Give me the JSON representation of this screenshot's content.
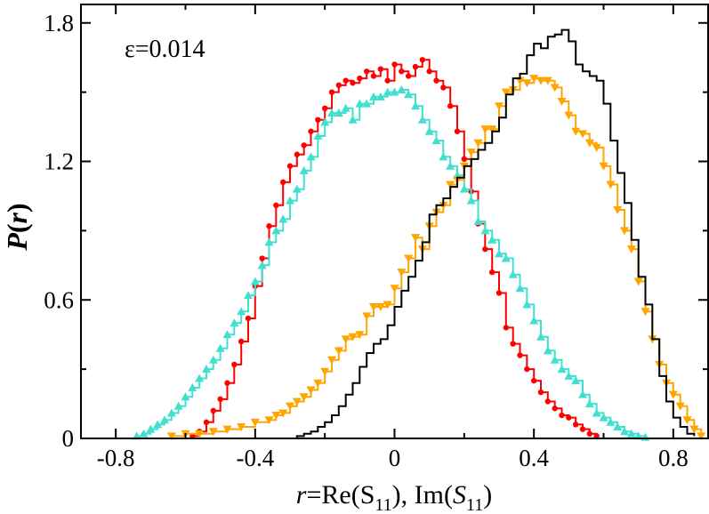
{
  "chart_data": {
    "type": "histogram-step",
    "xlim": [
      -0.9,
      0.9
    ],
    "ylim": [
      0,
      1.88
    ],
    "xticks": [
      -0.8,
      -0.4,
      0,
      0.4,
      0.8
    ],
    "xtick_labels": [
      "-0.8",
      "-0.4",
      "0",
      "0.4",
      "0.8"
    ],
    "yticks": [
      0,
      0.6,
      1.2,
      1.8
    ],
    "ytick_labels": [
      "0",
      "0.6",
      "1.2",
      "1.8"
    ],
    "ylabel": {
      "main": "P",
      "open": "(",
      "var": "r",
      "close": ")"
    },
    "xlabel": {
      "var": "r",
      "re": "=Re(S",
      "sub1": "11",
      "mid": "), Im(",
      "svar": "S",
      "sub2": "11",
      "close": ")"
    },
    "annotation": "ε=0.014",
    "series": [
      {
        "name": "red",
        "color": "#ff0000",
        "marker": "circle",
        "points": [
          [
            -0.58,
            0.01
          ],
          [
            -0.56,
            0.03
          ],
          [
            -0.54,
            0.07
          ],
          [
            -0.52,
            0.12
          ],
          [
            -0.5,
            0.17
          ],
          [
            -0.48,
            0.24
          ],
          [
            -0.46,
            0.32
          ],
          [
            -0.44,
            0.42
          ],
          [
            -0.42,
            0.52
          ],
          [
            -0.4,
            0.66
          ],
          [
            -0.38,
            0.78
          ],
          [
            -0.36,
            0.92
          ],
          [
            -0.34,
            1.01
          ],
          [
            -0.32,
            1.11
          ],
          [
            -0.3,
            1.18
          ],
          [
            -0.28,
            1.23
          ],
          [
            -0.26,
            1.27
          ],
          [
            -0.24,
            1.33
          ],
          [
            -0.22,
            1.38
          ],
          [
            -0.2,
            1.43
          ],
          [
            -0.18,
            1.5
          ],
          [
            -0.16,
            1.53
          ],
          [
            -0.14,
            1.55
          ],
          [
            -0.12,
            1.54
          ],
          [
            -0.1,
            1.56
          ],
          [
            -0.08,
            1.59
          ],
          [
            -0.06,
            1.57
          ],
          [
            -0.04,
            1.6
          ],
          [
            -0.02,
            1.55
          ],
          [
            0.0,
            1.62
          ],
          [
            0.02,
            1.59
          ],
          [
            0.04,
            1.57
          ],
          [
            0.06,
            1.61
          ],
          [
            0.08,
            1.64
          ],
          [
            0.1,
            1.59
          ],
          [
            0.12,
            1.55
          ],
          [
            0.14,
            1.52
          ],
          [
            0.16,
            1.44
          ],
          [
            0.18,
            1.33
          ],
          [
            0.2,
            1.21
          ],
          [
            0.22,
            1.07
          ],
          [
            0.24,
            0.93
          ],
          [
            0.26,
            0.82
          ],
          [
            0.28,
            0.72
          ],
          [
            0.3,
            0.63
          ],
          [
            0.32,
            0.48
          ],
          [
            0.34,
            0.41
          ],
          [
            0.36,
            0.36
          ],
          [
            0.38,
            0.3
          ],
          [
            0.4,
            0.25
          ],
          [
            0.42,
            0.2
          ],
          [
            0.44,
            0.16
          ],
          [
            0.46,
            0.13
          ],
          [
            0.48,
            0.1
          ],
          [
            0.5,
            0.09
          ],
          [
            0.52,
            0.06
          ],
          [
            0.54,
            0.04
          ],
          [
            0.56,
            0.02
          ],
          [
            0.58,
            0.01
          ]
        ]
      },
      {
        "name": "turquoise",
        "color": "#40e0d0",
        "marker": "triangle-up",
        "points": [
          [
            -0.74,
            0.01
          ],
          [
            -0.72,
            0.02
          ],
          [
            -0.7,
            0.04
          ],
          [
            -0.68,
            0.06
          ],
          [
            -0.66,
            0.08
          ],
          [
            -0.64,
            0.11
          ],
          [
            -0.62,
            0.14
          ],
          [
            -0.6,
            0.18
          ],
          [
            -0.58,
            0.22
          ],
          [
            -0.56,
            0.26
          ],
          [
            -0.54,
            0.3
          ],
          [
            -0.52,
            0.34
          ],
          [
            -0.5,
            0.39
          ],
          [
            -0.48,
            0.45
          ],
          [
            -0.46,
            0.5
          ],
          [
            -0.44,
            0.55
          ],
          [
            -0.42,
            0.62
          ],
          [
            -0.4,
            0.68
          ],
          [
            -0.38,
            0.75
          ],
          [
            -0.36,
            0.85
          ],
          [
            -0.34,
            0.9
          ],
          [
            -0.32,
            0.95
          ],
          [
            -0.3,
            1.03
          ],
          [
            -0.28,
            1.08
          ],
          [
            -0.26,
            1.16
          ],
          [
            -0.24,
            1.22
          ],
          [
            -0.22,
            1.31
          ],
          [
            -0.2,
            1.37
          ],
          [
            -0.18,
            1.41
          ],
          [
            -0.16,
            1.41
          ],
          [
            -0.14,
            1.43
          ],
          [
            -0.12,
            1.38
          ],
          [
            -0.1,
            1.45
          ],
          [
            -0.08,
            1.45
          ],
          [
            -0.06,
            1.48
          ],
          [
            -0.04,
            1.48
          ],
          [
            -0.02,
            1.5
          ],
          [
            0.0,
            1.5
          ],
          [
            0.02,
            1.51
          ],
          [
            0.04,
            1.49
          ],
          [
            0.06,
            1.44
          ],
          [
            0.08,
            1.38
          ],
          [
            0.1,
            1.33
          ],
          [
            0.12,
            1.29
          ],
          [
            0.14,
            1.22
          ],
          [
            0.16,
            1.18
          ],
          [
            0.18,
            1.14
          ],
          [
            0.2,
            1.08
          ],
          [
            0.22,
            1.03
          ],
          [
            0.24,
            0.94
          ],
          [
            0.26,
            0.9
          ],
          [
            0.28,
            0.86
          ],
          [
            0.3,
            0.8
          ],
          [
            0.32,
            0.78
          ],
          [
            0.34,
            0.71
          ],
          [
            0.36,
            0.65
          ],
          [
            0.38,
            0.58
          ],
          [
            0.4,
            0.51
          ],
          [
            0.42,
            0.44
          ],
          [
            0.44,
            0.38
          ],
          [
            0.46,
            0.34
          ],
          [
            0.48,
            0.3
          ],
          [
            0.5,
            0.27
          ],
          [
            0.52,
            0.25
          ],
          [
            0.54,
            0.19
          ],
          [
            0.56,
            0.15
          ],
          [
            0.58,
            0.11
          ],
          [
            0.6,
            0.09
          ],
          [
            0.62,
            0.07
          ],
          [
            0.64,
            0.05
          ],
          [
            0.66,
            0.03
          ],
          [
            0.68,
            0.02
          ],
          [
            0.7,
            0.01
          ],
          [
            0.72,
            0.005
          ]
        ]
      },
      {
        "name": "orange",
        "color": "#ffa500",
        "marker": "triangle-down",
        "points": [
          [
            -0.64,
            0.01
          ],
          [
            -0.6,
            0.02
          ],
          [
            -0.56,
            0.02
          ],
          [
            -0.52,
            0.03
          ],
          [
            -0.48,
            0.04
          ],
          [
            -0.44,
            0.05
          ],
          [
            -0.4,
            0.07
          ],
          [
            -0.36,
            0.08
          ],
          [
            -0.34,
            0.1
          ],
          [
            -0.32,
            0.11
          ],
          [
            -0.3,
            0.14
          ],
          [
            -0.28,
            0.16
          ],
          [
            -0.26,
            0.18
          ],
          [
            -0.24,
            0.21
          ],
          [
            -0.22,
            0.24
          ],
          [
            -0.2,
            0.29
          ],
          [
            -0.18,
            0.34
          ],
          [
            -0.16,
            0.38
          ],
          [
            -0.14,
            0.43
          ],
          [
            -0.12,
            0.44
          ],
          [
            -0.1,
            0.45
          ],
          [
            -0.08,
            0.53
          ],
          [
            -0.06,
            0.57
          ],
          [
            -0.04,
            0.57
          ],
          [
            -0.02,
            0.58
          ],
          [
            0.0,
            0.65
          ],
          [
            0.02,
            0.72
          ],
          [
            0.04,
            0.78
          ],
          [
            0.06,
            0.87
          ],
          [
            0.08,
            0.82
          ],
          [
            0.1,
            0.92
          ],
          [
            0.12,
            0.98
          ],
          [
            0.14,
            1.01
          ],
          [
            0.16,
            1.1
          ],
          [
            0.18,
            1.12
          ],
          [
            0.2,
            1.18
          ],
          [
            0.22,
            1.24
          ],
          [
            0.24,
            1.28
          ],
          [
            0.26,
            1.34
          ],
          [
            0.28,
            1.34
          ],
          [
            0.3,
            1.44
          ],
          [
            0.32,
            1.5
          ],
          [
            0.34,
            1.51
          ],
          [
            0.36,
            1.55
          ],
          [
            0.38,
            1.54
          ],
          [
            0.4,
            1.56
          ],
          [
            0.42,
            1.55
          ],
          [
            0.44,
            1.55
          ],
          [
            0.46,
            1.52
          ],
          [
            0.48,
            1.46
          ],
          [
            0.5,
            1.4
          ],
          [
            0.52,
            1.33
          ],
          [
            0.54,
            1.32
          ],
          [
            0.56,
            1.28
          ],
          [
            0.58,
            1.26
          ],
          [
            0.6,
            1.18
          ],
          [
            0.62,
            1.1
          ],
          [
            0.64,
            0.99
          ],
          [
            0.66,
            0.9
          ],
          [
            0.68,
            0.82
          ],
          [
            0.7,
            0.68
          ],
          [
            0.72,
            0.55
          ],
          [
            0.74,
            0.43
          ],
          [
            0.76,
            0.32
          ],
          [
            0.78,
            0.24
          ],
          [
            0.8,
            0.19
          ],
          [
            0.82,
            0.14
          ],
          [
            0.84,
            0.08
          ],
          [
            0.86,
            0.04
          ],
          [
            0.88,
            0.01
          ]
        ]
      },
      {
        "name": "black",
        "color": "#000000",
        "marker": "none",
        "points": [
          [
            -0.3,
            0.0
          ],
          [
            -0.28,
            0.01
          ],
          [
            -0.26,
            0.02
          ],
          [
            -0.24,
            0.03
          ],
          [
            -0.22,
            0.05
          ],
          [
            -0.2,
            0.07
          ],
          [
            -0.18,
            0.1
          ],
          [
            -0.16,
            0.14
          ],
          [
            -0.14,
            0.19
          ],
          [
            -0.12,
            0.24
          ],
          [
            -0.1,
            0.31
          ],
          [
            -0.08,
            0.37
          ],
          [
            -0.06,
            0.41
          ],
          [
            -0.04,
            0.43
          ],
          [
            -0.02,
            0.49
          ],
          [
            0.0,
            0.57
          ],
          [
            0.02,
            0.64
          ],
          [
            0.04,
            0.7
          ],
          [
            0.06,
            0.77
          ],
          [
            0.08,
            0.85
          ],
          [
            0.1,
            0.97
          ],
          [
            0.12,
            1.01
          ],
          [
            0.14,
            1.04
          ],
          [
            0.16,
            1.09
          ],
          [
            0.18,
            1.13
          ],
          [
            0.2,
            1.18
          ],
          [
            0.22,
            1.21
          ],
          [
            0.24,
            1.25
          ],
          [
            0.26,
            1.28
          ],
          [
            0.28,
            1.33
          ],
          [
            0.3,
            1.39
          ],
          [
            0.32,
            1.49
          ],
          [
            0.34,
            1.56
          ],
          [
            0.36,
            1.58
          ],
          [
            0.38,
            1.66
          ],
          [
            0.4,
            1.71
          ],
          [
            0.42,
            1.69
          ],
          [
            0.44,
            1.74
          ],
          [
            0.46,
            1.75
          ],
          [
            0.48,
            1.77
          ],
          [
            0.5,
            1.72
          ],
          [
            0.52,
            1.62
          ],
          [
            0.54,
            1.59
          ],
          [
            0.56,
            1.57
          ],
          [
            0.58,
            1.55
          ],
          [
            0.6,
            1.45
          ],
          [
            0.62,
            1.29
          ],
          [
            0.64,
            1.15
          ],
          [
            0.66,
            1.02
          ],
          [
            0.68,
            0.86
          ],
          [
            0.7,
            0.7
          ],
          [
            0.72,
            0.58
          ],
          [
            0.74,
            0.43
          ],
          [
            0.76,
            0.27
          ],
          [
            0.78,
            0.16
          ],
          [
            0.8,
            0.09
          ],
          [
            0.82,
            0.05
          ],
          [
            0.84,
            0.02
          ],
          [
            0.86,
            0.01
          ]
        ]
      }
    ]
  }
}
